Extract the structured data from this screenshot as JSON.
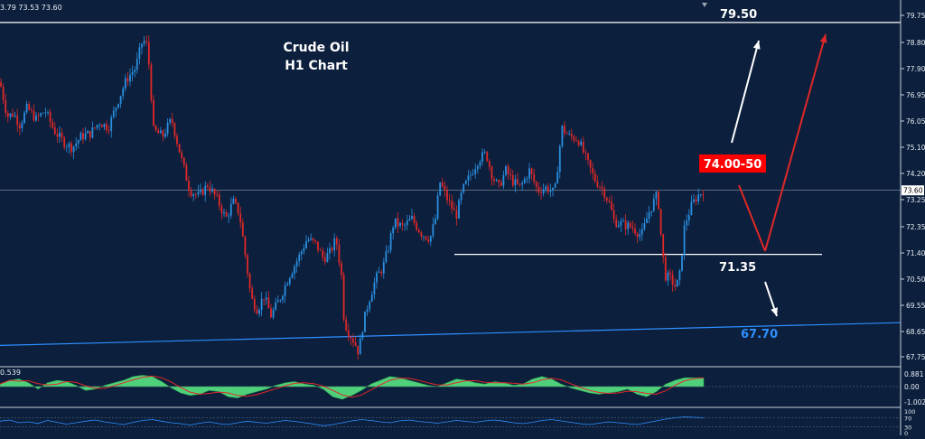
{
  "header": {
    "ohlc_text": "3.79 73.53 73.60"
  },
  "chart_data": {
    "type": "candlestick",
    "title": "Crude Oil",
    "subtitle": "H1 Chart",
    "price_axis": {
      "ticks": [
        "79.75",
        "78.80",
        "77.90",
        "76.95",
        "76.05",
        "75.10",
        "74.20",
        "73.25",
        "72.35",
        "71.40",
        "70.50",
        "69.55",
        "68.65",
        "67.75"
      ],
      "ylim": [
        67.3,
        79.95
      ],
      "current_price_label": "73.60"
    },
    "close_path": [
      [
        0,
        77.4
      ],
      [
        8,
        76.2
      ],
      [
        15,
        76.3
      ],
      [
        22,
        75.9
      ],
      [
        30,
        76.5
      ],
      [
        40,
        76.1
      ],
      [
        50,
        76.4
      ],
      [
        60,
        75.7
      ],
      [
        70,
        75.3
      ],
      [
        80,
        75.1
      ],
      [
        90,
        75.5
      ],
      [
        100,
        75.6
      ],
      [
        110,
        76.0
      ],
      [
        120,
        75.8
      ],
      [
        130,
        76.7
      ],
      [
        140,
        77.5
      ],
      [
        150,
        77.9
      ],
      [
        158,
        78.9
      ],
      [
        163,
        78.7
      ],
      [
        166,
        77.6
      ],
      [
        170,
        75.7
      ],
      [
        180,
        75.5
      ],
      [
        190,
        76.1
      ],
      [
        200,
        74.8
      ],
      [
        210,
        73.6
      ],
      [
        220,
        73.4
      ],
      [
        230,
        73.8
      ],
      [
        240,
        73.3
      ],
      [
        250,
        72.6
      ],
      [
        258,
        73.2
      ],
      [
        265,
        72.8
      ],
      [
        272,
        71.2
      ],
      [
        278,
        69.8
      ],
      [
        285,
        69.4
      ],
      [
        292,
        69.9
      ],
      [
        300,
        69.2
      ],
      [
        310,
        69.8
      ],
      [
        320,
        70.6
      ],
      [
        330,
        71.2
      ],
      [
        340,
        71.9
      ],
      [
        350,
        71.7
      ],
      [
        358,
        71.2
      ],
      [
        365,
        71.4
      ],
      [
        372,
        71.9
      ],
      [
        378,
        70.6
      ],
      [
        381,
        69.0
      ],
      [
        386,
        68.6
      ],
      [
        392,
        68.3
      ],
      [
        397,
        67.9
      ],
      [
        402,
        68.9
      ],
      [
        408,
        69.7
      ],
      [
        416,
        70.5
      ],
      [
        424,
        70.9
      ],
      [
        430,
        71.6
      ],
      [
        436,
        72.5
      ],
      [
        446,
        72.3
      ],
      [
        456,
        72.6
      ],
      [
        466,
        72.1
      ],
      [
        476,
        71.9
      ],
      [
        482,
        72.6
      ],
      [
        487,
        73.9
      ],
      [
        495,
        73.3
      ],
      [
        505,
        72.7
      ],
      [
        512,
        73.6
      ],
      [
        520,
        74.1
      ],
      [
        530,
        74.7
      ],
      [
        538,
        74.9
      ],
      [
        545,
        74.1
      ],
      [
        552,
        73.7
      ],
      [
        560,
        74.3
      ],
      [
        568,
        73.9
      ],
      [
        576,
        73.7
      ],
      [
        586,
        74.3
      ],
      [
        595,
        73.6
      ],
      [
        605,
        73.7
      ],
      [
        614,
        73.5
      ],
      [
        622,
        75.8
      ],
      [
        630,
        75.5
      ],
      [
        640,
        75.4
      ],
      [
        650,
        74.6
      ],
      [
        658,
        74.0
      ],
      [
        668,
        73.6
      ],
      [
        675,
        73.1
      ],
      [
        680,
        72.5
      ],
      [
        690,
        72.4
      ],
      [
        700,
        72.3
      ],
      [
        710,
        72.0
      ],
      [
        718,
        72.8
      ],
      [
        728,
        73.5
      ],
      [
        732,
        71.9
      ],
      [
        736,
        70.6
      ],
      [
        742,
        70.5
      ],
      [
        748,
        70.2
      ],
      [
        752,
        70.5
      ],
      [
        758,
        72.4
      ],
      [
        766,
        73.1
      ],
      [
        772,
        73.4
      ],
      [
        779,
        73.6
      ]
    ],
    "support_line": {
      "price": 71.35,
      "label": "71.35"
    },
    "resistance_line": {
      "price": 79.5,
      "label": "79.50"
    },
    "trendline": {
      "label": "67.70",
      "from_price": 68.15,
      "to_price": 68.95
    },
    "target_box": {
      "label": "74.00-50",
      "color": "#ff0000"
    },
    "colors": {
      "bull": "#2a8fe0",
      "bear": "#e02828",
      "support": "#ffffff",
      "trend": "#2e8fff",
      "arrow_red": "#e02828",
      "arrow_white": "#ffffff"
    },
    "macd": {
      "ticks": [
        "0.881",
        "0.00",
        "-1.002"
      ],
      "label": "0.539",
      "values": [
        0.2,
        0.5,
        0.6,
        0.3,
        -0.2,
        0.3,
        0.5,
        0.4,
        0.1,
        -0.3,
        -0.2,
        0.1,
        0.3,
        0.5,
        0.8,
        0.9,
        0.8,
        0.4,
        -0.1,
        -0.5,
        -0.7,
        -0.6,
        -0.3,
        -0.4,
        -0.8,
        -0.9,
        -0.6,
        -0.4,
        -0.2,
        0.1,
        0.3,
        0.4,
        0.2,
        0.1,
        -0.2,
        -0.8,
        -1.0,
        -0.7,
        -0.3,
        0.2,
        0.5,
        0.8,
        0.7,
        0.5,
        0.3,
        0.1,
        0.0,
        0.3,
        0.6,
        0.5,
        0.3,
        0.2,
        0.4,
        0.3,
        0.1,
        0.2,
        0.6,
        0.8,
        0.6,
        0.2,
        -0.1,
        -0.3,
        -0.5,
        -0.6,
        -0.5,
        -0.4,
        -0.2,
        -0.6,
        -0.8,
        -0.4,
        0.2,
        0.5,
        0.7,
        0.7,
        0.7
      ]
    },
    "rsi": {
      "ticks": [
        "100",
        "70",
        "30",
        "0"
      ],
      "values": [
        55,
        60,
        48,
        52,
        45,
        58,
        50,
        42,
        48,
        55,
        60,
        52,
        46,
        40,
        50,
        58,
        62,
        55,
        48,
        44,
        38,
        46,
        52,
        44,
        40,
        48,
        55,
        50,
        46,
        52,
        58,
        54,
        48,
        42,
        35,
        40,
        48,
        56,
        62,
        58,
        52,
        48,
        56,
        60,
        54,
        50,
        46,
        52,
        58,
        54,
        50,
        56,
        60,
        55,
        48,
        44,
        50,
        58,
        62,
        56,
        50,
        44,
        40,
        46,
        52,
        48,
        44,
        40,
        48,
        56,
        64,
        70,
        74,
        72,
        70
      ]
    }
  }
}
